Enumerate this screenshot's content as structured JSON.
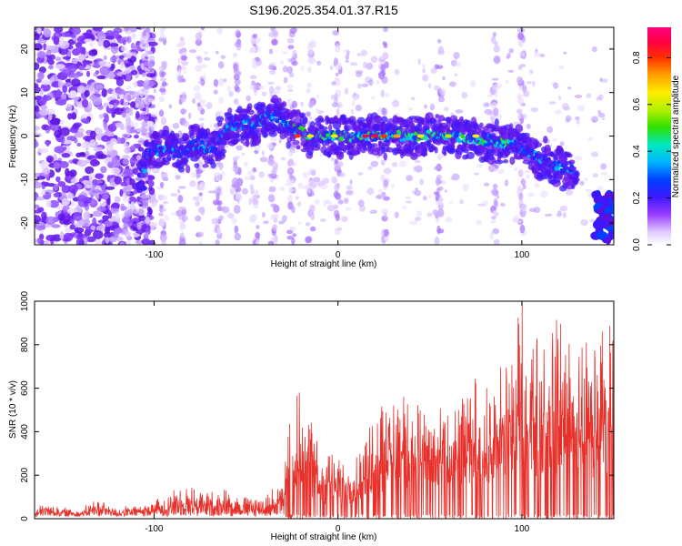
{
  "title": "S196.2025.354.01.37.R15",
  "charts": [
    {
      "type": "heatmap",
      "xlabel": "Height of straight line (km)",
      "ylabel": "Frequency (Hz)",
      "xlim": [
        -165,
        150
      ],
      "ylim": [
        -25,
        25
      ],
      "xticks": [
        -100,
        0,
        100
      ],
      "yticks": [
        -20,
        -10,
        0,
        10,
        20
      ],
      "colorbar": {
        "label": "Normalized spectral amplitude",
        "range": [
          0,
          0.93
        ],
        "ticks": [
          "0.0",
          "0.2",
          "0.4",
          "0.6",
          "0.8"
        ]
      },
      "signal_track": [
        {
          "x": -105,
          "f": -5
        },
        {
          "x": -95,
          "f": -3
        },
        {
          "x": -85,
          "f": -4
        },
        {
          "x": -78,
          "f": -2
        },
        {
          "x": -68,
          "f": -3
        },
        {
          "x": -60,
          "f": 2
        },
        {
          "x": -45,
          "f": 3
        },
        {
          "x": -35,
          "f": 5
        },
        {
          "x": -25,
          "f": 2
        },
        {
          "x": -15,
          "f": 0
        },
        {
          "x": 0,
          "f": 0
        },
        {
          "x": 20,
          "f": 0
        },
        {
          "x": 40,
          "f": 0
        },
        {
          "x": 60,
          "f": 0
        },
        {
          "x": 80,
          "f": -1
        },
        {
          "x": 95,
          "f": -2
        },
        {
          "x": 110,
          "f": -5
        },
        {
          "x": 125,
          "f": -8
        }
      ]
    },
    {
      "type": "line",
      "xlabel": "Height of straight line (km)",
      "ylabel": "SNR (10 * v/v)",
      "xlim": [
        -165,
        150
      ],
      "ylim": [
        0,
        1000
      ],
      "xticks": [
        -100,
        0,
        100
      ],
      "yticks": [
        0,
        200,
        400,
        600,
        800,
        1000
      ],
      "series": [
        {
          "name": "SNR",
          "color": "#e8302a",
          "envelope": [
            {
              "x": -165,
              "y": 40
            },
            {
              "x": -160,
              "y": 80
            },
            {
              "x": -150,
              "y": 60
            },
            {
              "x": -140,
              "y": 45
            },
            {
              "x": -130,
              "y": 110
            },
            {
              "x": -120,
              "y": 50
            },
            {
              "x": -110,
              "y": 70
            },
            {
              "x": -100,
              "y": 90
            },
            {
              "x": -90,
              "y": 150
            },
            {
              "x": -80,
              "y": 170
            },
            {
              "x": -70,
              "y": 140
            },
            {
              "x": -60,
              "y": 150
            },
            {
              "x": -50,
              "y": 120
            },
            {
              "x": -40,
              "y": 110
            },
            {
              "x": -30,
              "y": 200
            },
            {
              "x": -25,
              "y": 550
            },
            {
              "x": -20,
              "y": 590
            },
            {
              "x": -10,
              "y": 330
            },
            {
              "x": 0,
              "y": 300
            },
            {
              "x": 10,
              "y": 290
            },
            {
              "x": 20,
              "y": 500
            },
            {
              "x": 30,
              "y": 620
            },
            {
              "x": 40,
              "y": 550
            },
            {
              "x": 50,
              "y": 560
            },
            {
              "x": 60,
              "y": 470
            },
            {
              "x": 70,
              "y": 590
            },
            {
              "x": 75,
              "y": 650
            },
            {
              "x": 80,
              "y": 600
            },
            {
              "x": 90,
              "y": 720
            },
            {
              "x": 100,
              "y": 1000
            },
            {
              "x": 110,
              "y": 850
            },
            {
              "x": 120,
              "y": 930
            },
            {
              "x": 130,
              "y": 820
            },
            {
              "x": 140,
              "y": 860
            },
            {
              "x": 150,
              "y": 950
            }
          ]
        }
      ]
    }
  ]
}
